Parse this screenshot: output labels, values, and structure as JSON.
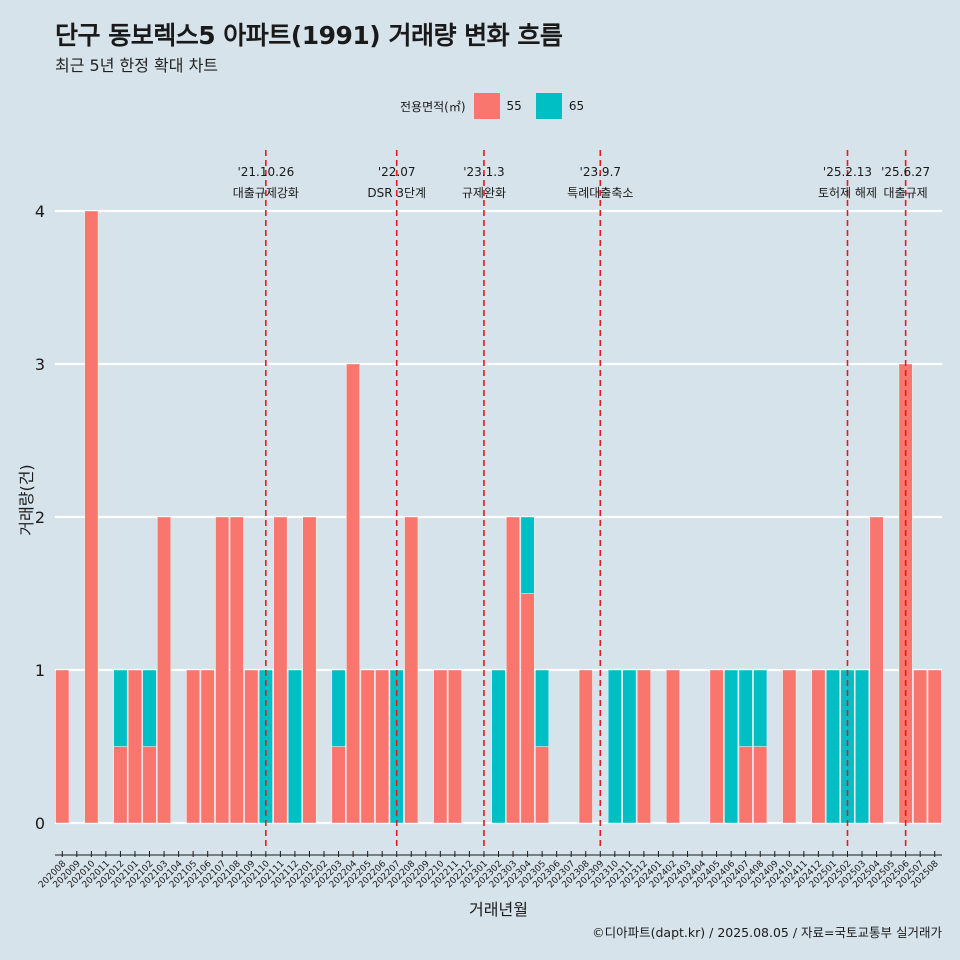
{
  "title": "단구 동보렉스5 아파트(1991) 거래량 변화 흐름",
  "subtitle": "최근 5년 한정 확대 차트",
  "caption": "©디아파트(dapt.kr) / 2025.08.05 / 자료=국토교통부 실거래가",
  "colors": {
    "background": "#d6e3ea",
    "s55": "#f8766d",
    "s65": "#00bfc4",
    "event_line": "#e41a1c",
    "grid": "#ffffff"
  },
  "chart_data": {
    "type": "bar",
    "xlabel": "거래년월",
    "ylabel": "거래량(건)",
    "ylim": [
      0,
      4
    ],
    "y_ticks": [
      0,
      1,
      2,
      3,
      4
    ],
    "grid": true,
    "legend_title": "전용면적(㎡)",
    "legend_position": "top",
    "categories": [
      "202008",
      "202009",
      "202010",
      "202011",
      "202012",
      "202101",
      "202102",
      "202103",
      "202104",
      "202105",
      "202106",
      "202107",
      "202108",
      "202109",
      "202110",
      "202111",
      "202112",
      "202201",
      "202202",
      "202203",
      "202204",
      "202205",
      "202206",
      "202207",
      "202208",
      "202209",
      "202210",
      "202211",
      "202212",
      "202301",
      "202302",
      "202303",
      "202304",
      "202305",
      "202306",
      "202307",
      "202308",
      "202309",
      "202310",
      "202311",
      "202312",
      "202401",
      "202402",
      "202403",
      "202404",
      "202405",
      "202406",
      "202407",
      "202408",
      "202409",
      "202410",
      "202411",
      "202412",
      "202501",
      "202502",
      "202503",
      "202504",
      "202505",
      "202506",
      "202507",
      "202508"
    ],
    "series": [
      {
        "name": "55",
        "values": [
          1,
          0,
          4,
          0,
          0.5,
          1,
          0.5,
          2,
          0,
          1,
          1,
          2,
          2,
          1,
          0,
          2,
          0,
          2,
          0,
          0.5,
          3,
          1,
          1,
          0,
          2,
          0,
          1,
          1,
          0,
          0,
          0,
          2,
          1.5,
          0.5,
          0,
          0,
          1,
          0,
          0,
          0,
          1,
          0,
          1,
          0,
          0,
          1,
          0,
          0.5,
          0.5,
          0,
          1,
          0,
          1,
          0,
          0,
          0,
          2,
          0,
          3,
          1,
          1
        ]
      },
      {
        "name": "65",
        "values": [
          0,
          0,
          0,
          0,
          0.5,
          0,
          0.5,
          0,
          0,
          0,
          0,
          0,
          0,
          0,
          1,
          0,
          1,
          0,
          0,
          0.5,
          0,
          0,
          0,
          1,
          0,
          0,
          0,
          0,
          0,
          0,
          1,
          0,
          0.5,
          0.5,
          0,
          0,
          0,
          0,
          1,
          1,
          0,
          0,
          0,
          0,
          0,
          0,
          1,
          0.5,
          0.5,
          0,
          0,
          0,
          0,
          1,
          1,
          1,
          0,
          0,
          0,
          0,
          0
        ]
      }
    ],
    "events": [
      {
        "x": "202110",
        "date": "'21.10.26",
        "label": "대출규제강화"
      },
      {
        "x": "202207",
        "date": "'22.07",
        "label": "DSR 3단계"
      },
      {
        "x": "202301",
        "date": "'23.1.3",
        "label": "규제완화"
      },
      {
        "x": "202309",
        "date": "'23.9.7",
        "label": "특례대출축소"
      },
      {
        "x": "202502",
        "date": "'25.2.13",
        "label": "토허제 해제"
      },
      {
        "x": "202506",
        "date": "'25.6.27",
        "label": "대출규제"
      }
    ]
  }
}
